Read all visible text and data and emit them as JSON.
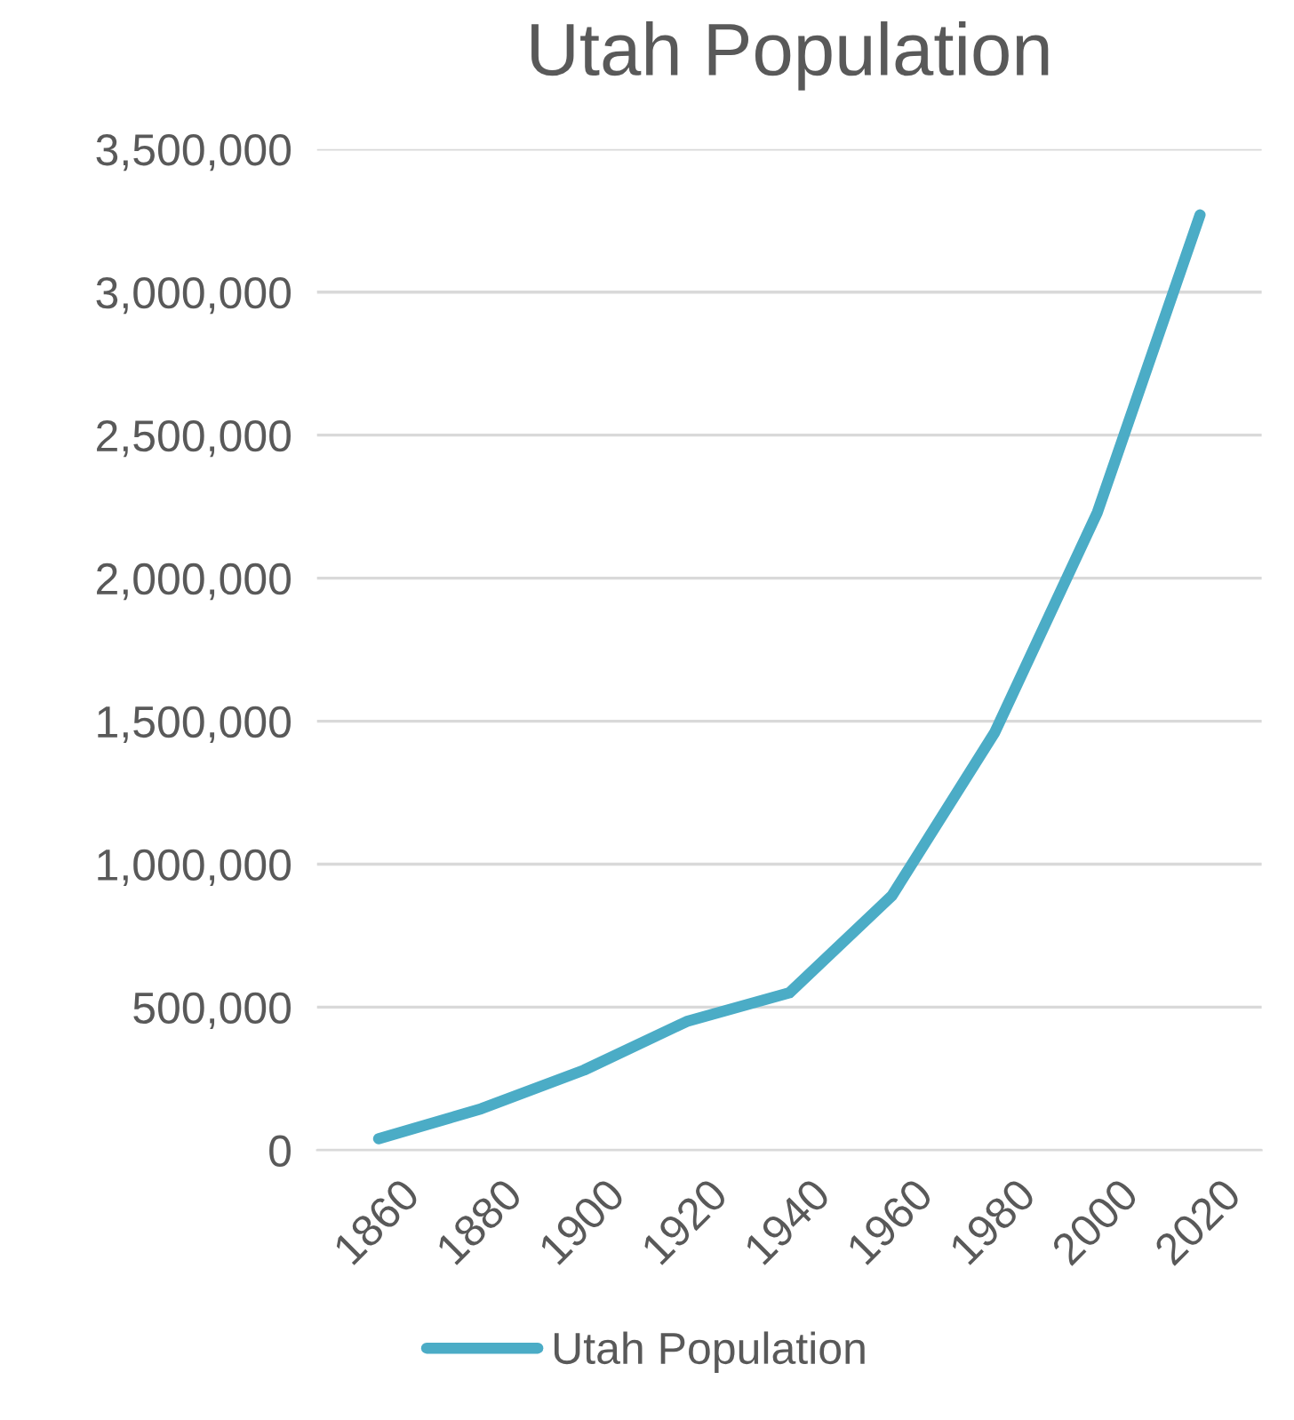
{
  "chart_data": {
    "type": "line",
    "title": "Utah Population",
    "categories": [
      "1860",
      "1880",
      "1900",
      "1920",
      "1940",
      "1960",
      "1980",
      "2000",
      "2020"
    ],
    "series": [
      {
        "name": "Utah Population",
        "color": "#4bacc6",
        "values": [
          40000,
          145000,
          280000,
          450000,
          550000,
          890000,
          1460000,
          2230000,
          3270000
        ]
      }
    ],
    "ylim": [
      0,
      3500000
    ],
    "yticks": [
      {
        "value": 0,
        "label": "0"
      },
      {
        "value": 500000,
        "label": "500,000"
      },
      {
        "value": 1000000,
        "label": "1,000,000"
      },
      {
        "value": 1500000,
        "label": "1,500,000"
      },
      {
        "value": 2000000,
        "label": "2,000,000"
      },
      {
        "value": 2500000,
        "label": "2,500,000"
      },
      {
        "value": 3000000,
        "label": "3,000,000"
      },
      {
        "value": 3500000,
        "label": "3,500,000"
      }
    ],
    "grid": "y",
    "legend": "bottom",
    "marker": "none",
    "line_style": "solid"
  }
}
